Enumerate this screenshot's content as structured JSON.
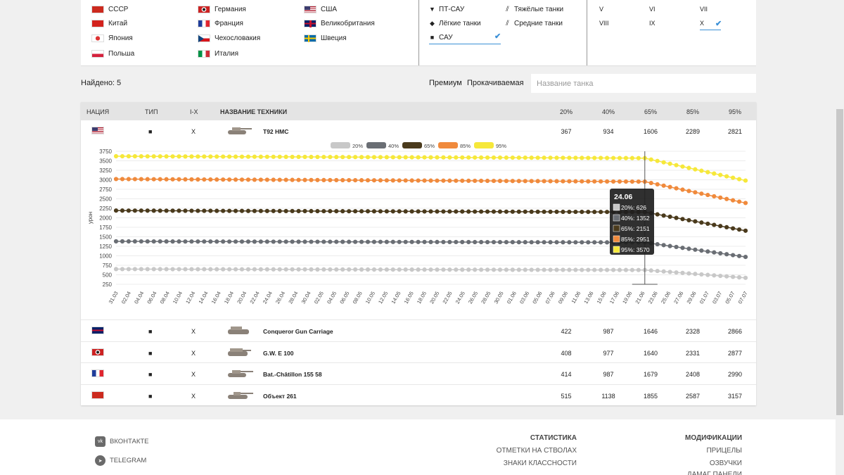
{
  "filters": {
    "nations": [
      {
        "label": "СССР",
        "flag": "ussr"
      },
      {
        "label": "Китай",
        "flag": "china"
      },
      {
        "label": "Япония",
        "flag": "japan"
      },
      {
        "label": "Польша",
        "flag": "poland"
      },
      {
        "label": "Германия",
        "flag": "germany"
      },
      {
        "label": "Франция",
        "flag": "france"
      },
      {
        "label": "Чехословакия",
        "flag": "czech"
      },
      {
        "label": "Италия",
        "flag": "italy"
      },
      {
        "label": "США",
        "flag": "usa"
      },
      {
        "label": "Великобритания",
        "flag": "uk"
      },
      {
        "label": "Швеция",
        "flag": "sweden"
      }
    ],
    "types": {
      "td": "ПТ-САУ",
      "heavy": "Тяжёлые танки",
      "light": "Лёгкие танки",
      "medium": "Средние танки",
      "spg": "САУ",
      "td_icon": "triangle-down-icon",
      "heavy_icon": "stripes-icon",
      "light_icon": "diamond-icon",
      "medium_icon": "stripes-icon",
      "spg_icon": "square-icon"
    },
    "tiers": {
      "v": "V",
      "vi": "VI",
      "vii": "VII",
      "viii": "VIII",
      "ix": "IX",
      "x": "X"
    },
    "checkmark": "✔"
  },
  "toolbar": {
    "found": "Найдено: 5",
    "premium": "Премиум",
    "upgradable": "Прокачиваемая",
    "search_placeholder": "Название танка"
  },
  "table": {
    "headers": {
      "nation": "НАЦИЯ",
      "type": "ТИП",
      "tier": "I-X",
      "name": "НАЗВАНИЕ ТЕХНИКИ",
      "p20": "20%",
      "p40": "40%",
      "p65": "65%",
      "p85": "85%",
      "p95": "95%"
    },
    "rows": [
      {
        "flag": "usa",
        "type": "■",
        "tier": "X",
        "name": "T92 HMC",
        "p20": "367",
        "p40": "934",
        "p65": "1606",
        "p85": "2289",
        "p95": "2821"
      },
      {
        "flag": "uk",
        "type": "■",
        "tier": "X",
        "name": "Conqueror Gun Carriage",
        "p20": "422",
        "p40": "987",
        "p65": "1646",
        "p85": "2328",
        "p95": "2866"
      },
      {
        "flag": "germany",
        "type": "■",
        "tier": "X",
        "name": "G.W. E 100",
        "p20": "408",
        "p40": "977",
        "p65": "1640",
        "p85": "2331",
        "p95": "2877"
      },
      {
        "flag": "france",
        "type": "■",
        "tier": "X",
        "name": "Bat.-Châtillon 155 58",
        "p20": "414",
        "p40": "987",
        "p65": "1679",
        "p85": "2408",
        "p95": "2990"
      },
      {
        "flag": "ussr",
        "type": "■",
        "tier": "X",
        "name": "Объект 261",
        "p20": "515",
        "p40": "1138",
        "p65": "1855",
        "p85": "2587",
        "p95": "3157"
      }
    ]
  },
  "chart_data": {
    "type": "line",
    "ylabel": "урон",
    "ylim": [
      250,
      3750
    ],
    "yticks": [
      250,
      500,
      750,
      1000,
      1250,
      1500,
      1750,
      2000,
      2250,
      2500,
      2750,
      3000,
      3250,
      3500,
      3750
    ],
    "legend": "top",
    "xticks": [
      "31.03",
      "02.04",
      "04.04",
      "06.04",
      "08.04",
      "10.04",
      "12.04",
      "14.04",
      "16.04",
      "18.04",
      "20.04",
      "22.04",
      "24.04",
      "26.04",
      "28.04",
      "30.04",
      "02.05",
      "04.05",
      "06.05",
      "08.05",
      "10.05",
      "12.05",
      "14.05",
      "16.05",
      "18.05",
      "20.05",
      "22.05",
      "24.05",
      "26.05",
      "28.05",
      "30.05",
      "01.06",
      "03.06",
      "05.06",
      "07.06",
      "09.06",
      "11.06",
      "13.06",
      "15.06",
      "17.06",
      "19.06",
      "21.06",
      "23.06",
      "25.06",
      "27.06",
      "29.06",
      "01.07",
      "03.07",
      "05.07",
      "07.07"
    ],
    "series": [
      {
        "name": "20%",
        "color": "#c8c8c8",
        "anchors": [
          [
            0,
            650
          ],
          [
            84,
            626
          ],
          [
            100,
            420
          ]
        ]
      },
      {
        "name": "40%",
        "color": "#6a6e74",
        "anchors": [
          [
            0,
            1380
          ],
          [
            84,
            1352
          ],
          [
            100,
            970
          ]
        ]
      },
      {
        "name": "65%",
        "color": "#4a3a1c",
        "anchors": [
          [
            0,
            2190
          ],
          [
            84,
            2151
          ],
          [
            100,
            1660
          ]
        ]
      },
      {
        "name": "85%",
        "color": "#f08a3c",
        "anchors": [
          [
            0,
            3020
          ],
          [
            84,
            2951
          ],
          [
            100,
            2390
          ]
        ]
      },
      {
        "name": "95%",
        "color": "#f6e83a",
        "anchors": [
          [
            0,
            3620
          ],
          [
            84,
            3570
          ],
          [
            100,
            2980
          ]
        ]
      }
    ],
    "tooltip": {
      "title": "24.06",
      "lines": [
        "20%: 626",
        "40%: 1352",
        "65%: 2151",
        "85%: 2951",
        "95%: 3570"
      ]
    }
  },
  "footer": {
    "vk": "ВКОНТАКТЕ",
    "vk_icon": "vk-icon",
    "telegram": "TELEGRAM",
    "telegram_icon": "telegram-icon",
    "stats_head": "СТАТИСТИКА",
    "stats_links": [
      "ОТМЕТКИ НА СТВОЛАХ",
      "ЗНАКИ КЛАССНОСТИ"
    ],
    "mods_head": "МОДИФИКАЦИИ",
    "mods_links": [
      "ПРИЦЕЛЫ",
      "ОЗВУЧКИ",
      "ДАМАГ ПАНЕЛИ"
    ]
  }
}
